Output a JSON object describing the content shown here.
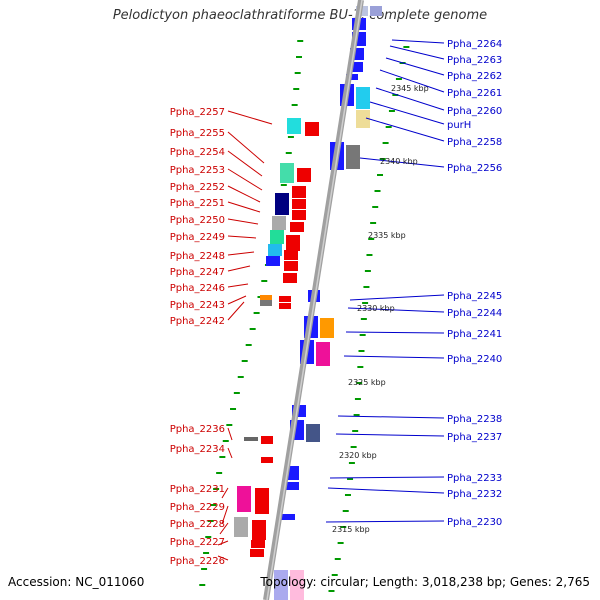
{
  "title": "Pelodictyon phaeoclathratiforme BU-1, complete genome",
  "accession_label": "Accession: NC_011060",
  "summary_label": "Topology: circular; Length: 3,018,238 bp; Genes: 2,765",
  "colors": {
    "forward": "#1a1aff",
    "reverse": "#ee0000",
    "backbone": "#999999",
    "tick": "#009900"
  },
  "scale_labels": [
    "2345 kbp",
    "2340 kbp",
    "2335 kbp",
    "2330 kbp",
    "2325 kbp",
    "2320 kbp",
    "2315 kbp"
  ],
  "forward_genes": [
    "Ppha_2264",
    "Ppha_2263",
    "Ppha_2262",
    "Ppha_2261",
    "Ppha_2260",
    "purH",
    "Ppha_2258",
    "Ppha_2256",
    "Ppha_2245",
    "Ppha_2244",
    "Ppha_2241",
    "Ppha_2240",
    "Ppha_2238",
    "Ppha_2237",
    "Ppha_2233",
    "Ppha_2232",
    "Ppha_2230"
  ],
  "reverse_genes": [
    "Ppha_2257",
    "Ppha_2255",
    "Ppha_2254",
    "Ppha_2253",
    "Ppha_2252",
    "Ppha_2251",
    "Ppha_2250",
    "Ppha_2249",
    "Ppha_2248",
    "Ppha_2247",
    "Ppha_2246",
    "Ppha_2243",
    "Ppha_2242",
    "Ppha_2236",
    "Ppha_2234",
    "Ppha_2231",
    "Ppha_2229",
    "Ppha_2228",
    "Ppha_2227",
    "Ppha_2226"
  ]
}
